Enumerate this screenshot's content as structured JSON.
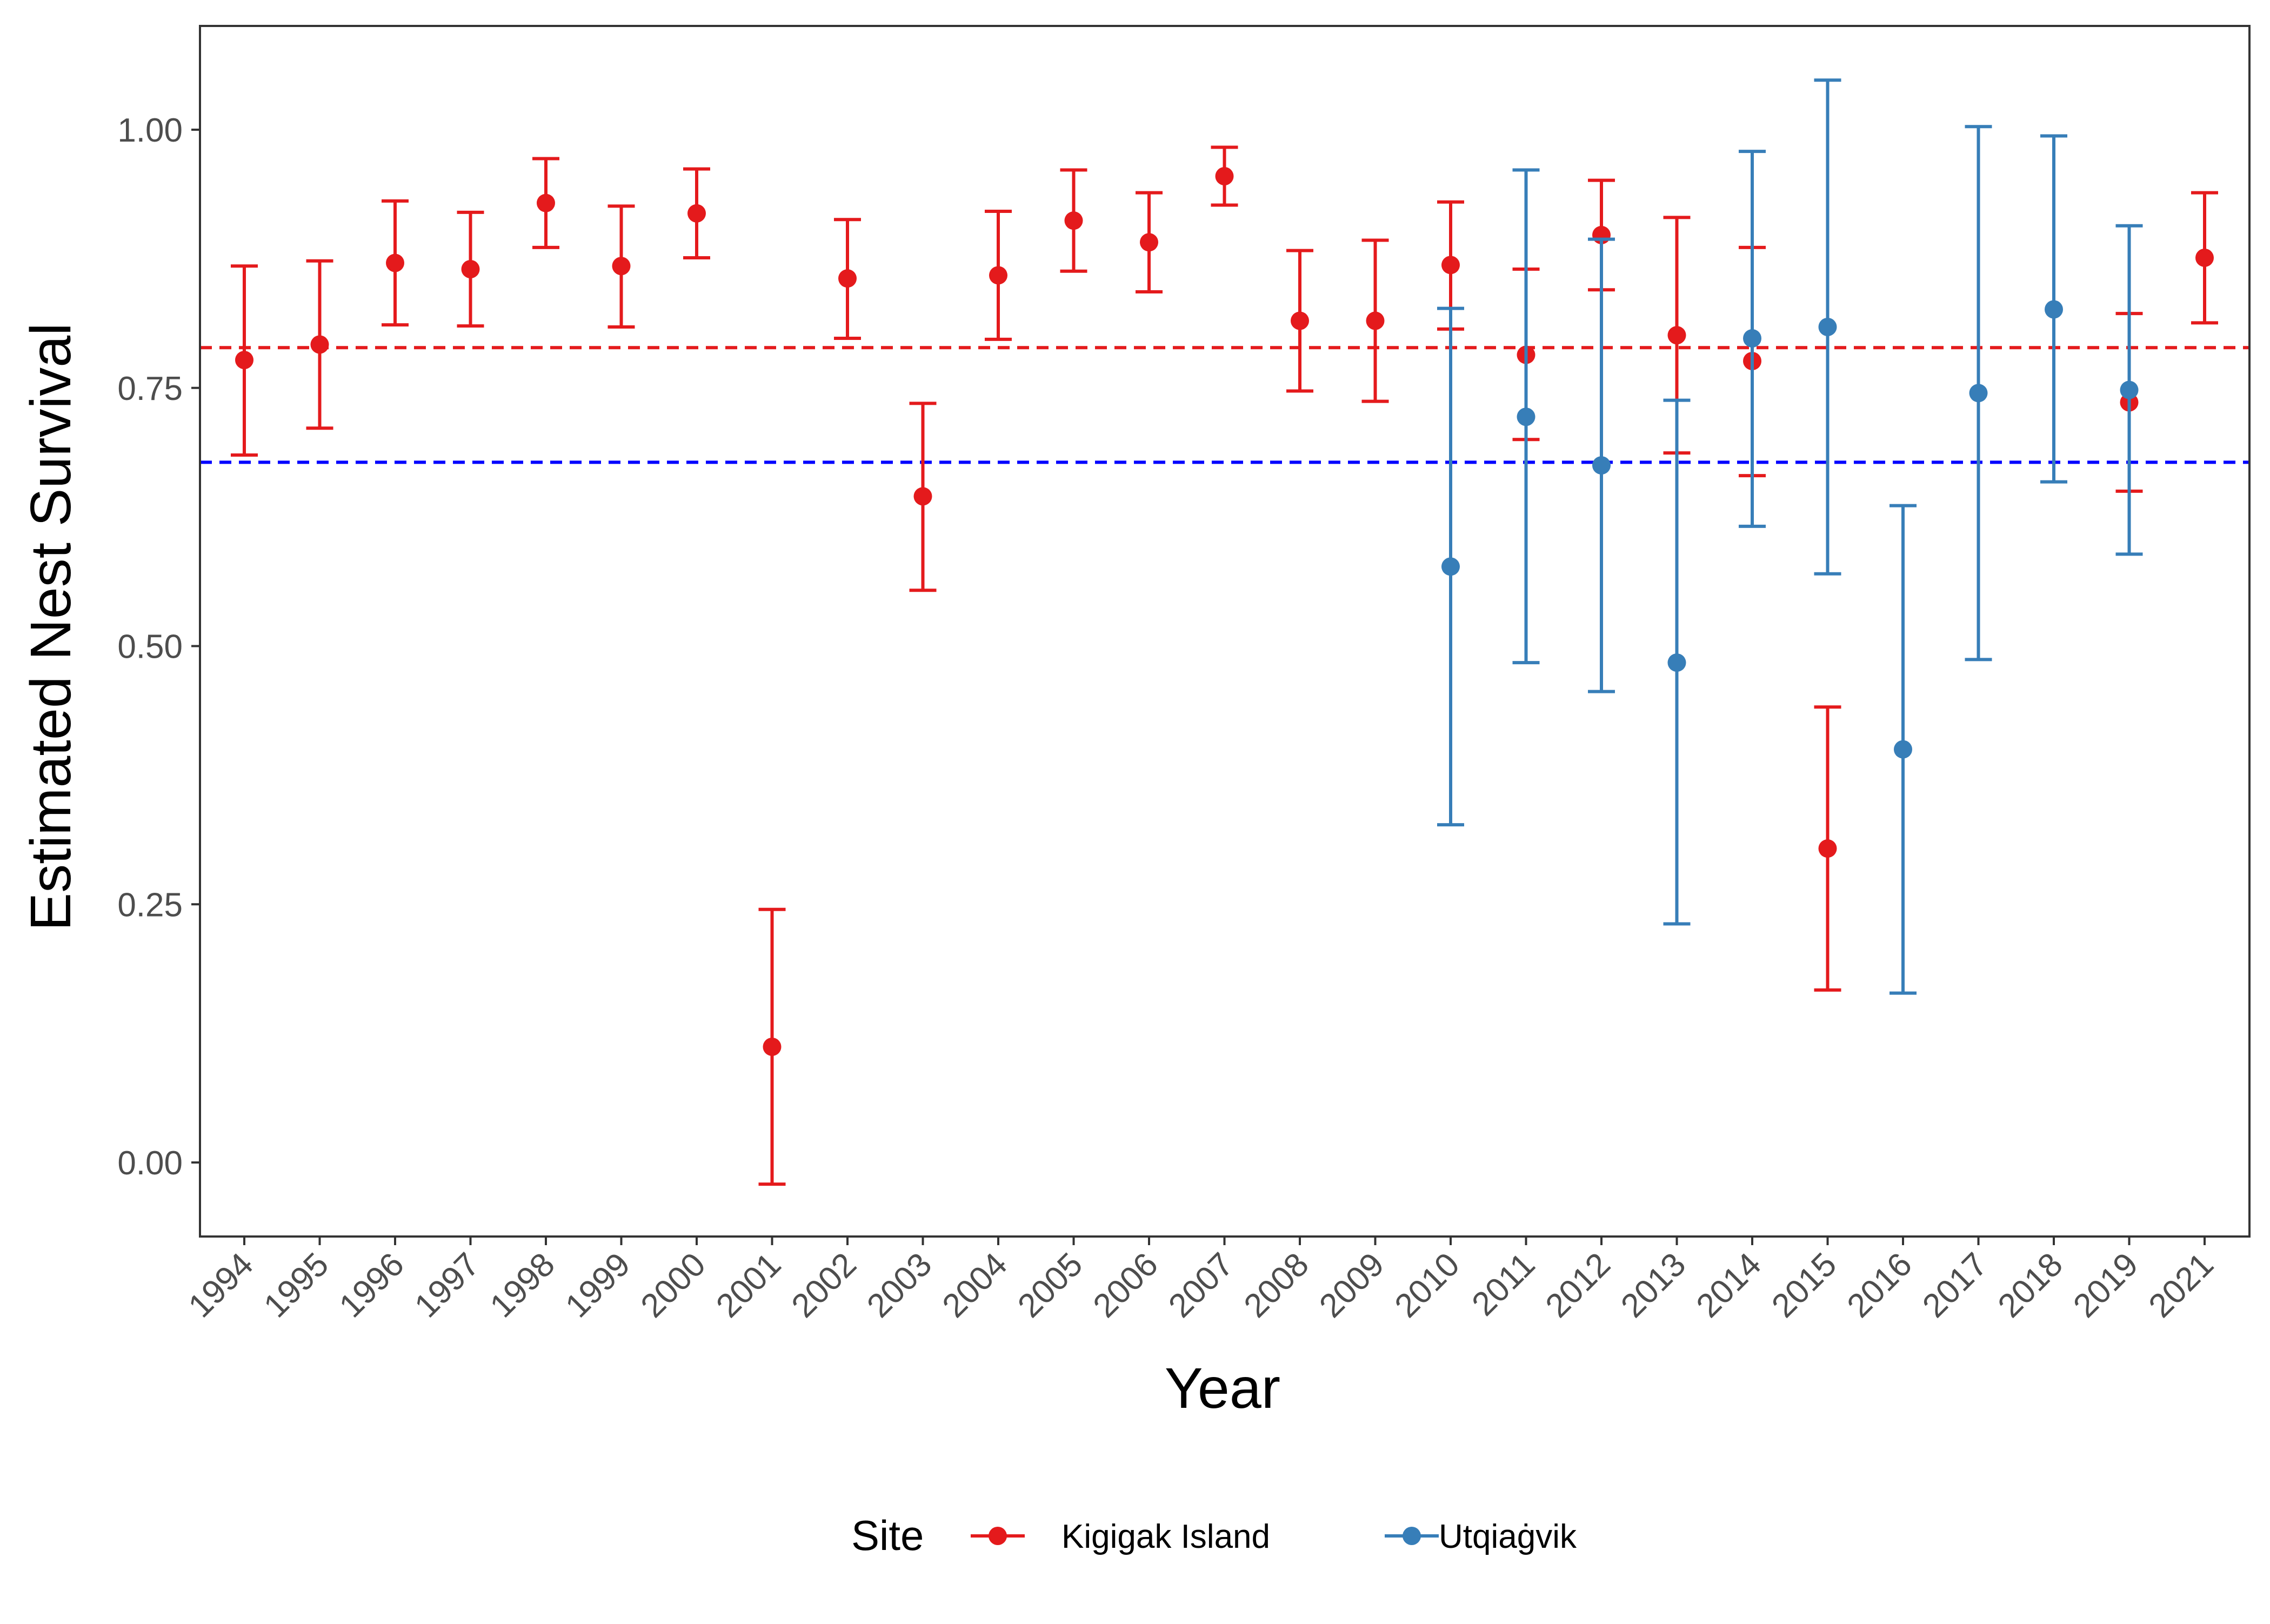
{
  "chart_data": {
    "type": "scatter",
    "subtype": "point-errorbar",
    "xlabel": "Year",
    "ylabel": "Estimated Nest Survival",
    "x_categories": [
      "1994",
      "1995",
      "1996",
      "1997",
      "1998",
      "1999",
      "2000",
      "2001",
      "2002",
      "2003",
      "2004",
      "2005",
      "2006",
      "2007",
      "2008",
      "2009",
      "2010",
      "2011",
      "2012",
      "2013",
      "2014",
      "2015",
      "2016",
      "2017",
      "2018",
      "2019",
      "2021"
    ],
    "ylim": [
      -0.07,
      1.1
    ],
    "y_ticks": [
      0.0,
      0.25,
      0.5,
      0.75,
      1.0
    ],
    "y_tick_labels": [
      "0.00",
      "0.25",
      "0.50",
      "0.75",
      "1.00"
    ],
    "grid": false,
    "legend": {
      "title": "Site",
      "position": "bottom"
    },
    "series": [
      {
        "name": "Kigigak Island",
        "color": "#E41A1C",
        "mean_line": 0.789,
        "points": [
          {
            "x": "1994",
            "y": 0.777,
            "lower": 0.685,
            "upper": 0.868
          },
          {
            "x": "1995",
            "y": 0.792,
            "lower": 0.711,
            "upper": 0.873
          },
          {
            "x": "1996",
            "y": 0.871,
            "lower": 0.811,
            "upper": 0.931
          },
          {
            "x": "1997",
            "y": 0.865,
            "lower": 0.81,
            "upper": 0.92
          },
          {
            "x": "1998",
            "y": 0.929,
            "lower": 0.886,
            "upper": 0.972
          },
          {
            "x": "1999",
            "y": 0.868,
            "lower": 0.809,
            "upper": 0.926
          },
          {
            "x": "2000",
            "y": 0.919,
            "lower": 0.876,
            "upper": 0.962
          },
          {
            "x": "2001",
            "y": 0.112,
            "lower": -0.021,
            "upper": 0.245
          },
          {
            "x": "2002",
            "y": 0.856,
            "lower": 0.798,
            "upper": 0.913
          },
          {
            "x": "2003",
            "y": 0.645,
            "lower": 0.554,
            "upper": 0.735
          },
          {
            "x": "2004",
            "y": 0.859,
            "lower": 0.797,
            "upper": 0.921
          },
          {
            "x": "2005",
            "y": 0.912,
            "lower": 0.863,
            "upper": 0.961
          },
          {
            "x": "2006",
            "y": 0.891,
            "lower": 0.843,
            "upper": 0.939
          },
          {
            "x": "2007",
            "y": 0.955,
            "lower": 0.927,
            "upper": 0.983
          },
          {
            "x": "2008",
            "y": 0.815,
            "lower": 0.747,
            "upper": 0.883
          },
          {
            "x": "2009",
            "y": 0.815,
            "lower": 0.737,
            "upper": 0.893
          },
          {
            "x": "2010",
            "y": 0.869,
            "lower": 0.807,
            "upper": 0.93
          },
          {
            "x": "2011",
            "y": 0.782,
            "lower": 0.7,
            "upper": 0.865
          },
          {
            "x": "2012",
            "y": 0.898,
            "lower": 0.845,
            "upper": 0.951
          },
          {
            "x": "2013",
            "y": 0.801,
            "lower": 0.687,
            "upper": 0.915
          },
          {
            "x": "2014",
            "y": 0.776,
            "lower": 0.665,
            "upper": 0.886
          },
          {
            "x": "2015",
            "y": 0.304,
            "lower": 0.167,
            "upper": 0.441
          },
          {
            "x": "2019",
            "y": 0.736,
            "lower": 0.65,
            "upper": 0.822
          },
          {
            "x": "2021",
            "y": 0.876,
            "lower": 0.813,
            "upper": 0.939
          }
        ]
      },
      {
        "name": "Utqiaġvik",
        "color": "#377EB8",
        "mean_line": 0.678,
        "points": [
          {
            "x": "2010",
            "y": 0.577,
            "lower": 0.327,
            "upper": 0.827
          },
          {
            "x": "2011",
            "y": 0.722,
            "lower": 0.484,
            "upper": 0.961
          },
          {
            "x": "2012",
            "y": 0.675,
            "lower": 0.456,
            "upper": 0.894
          },
          {
            "x": "2013",
            "y": 0.484,
            "lower": 0.231,
            "upper": 0.738
          },
          {
            "x": "2014",
            "y": 0.798,
            "lower": 0.616,
            "upper": 0.979
          },
          {
            "x": "2015",
            "y": 0.809,
            "lower": 0.57,
            "upper": 1.048
          },
          {
            "x": "2016",
            "y": 0.4,
            "lower": 0.164,
            "upper": 0.636
          },
          {
            "x": "2017",
            "y": 0.745,
            "lower": 0.487,
            "upper": 1.003
          },
          {
            "x": "2018",
            "y": 0.826,
            "lower": 0.659,
            "upper": 0.994
          },
          {
            "x": "2019",
            "y": 0.748,
            "lower": 0.589,
            "upper": 0.907
          }
        ]
      }
    ],
    "reference_lines": [
      {
        "y": 0.789,
        "color": "#E41A1C",
        "style": "dashed"
      },
      {
        "y": 0.678,
        "color": "#0000FF",
        "style": "dashed"
      }
    ]
  }
}
